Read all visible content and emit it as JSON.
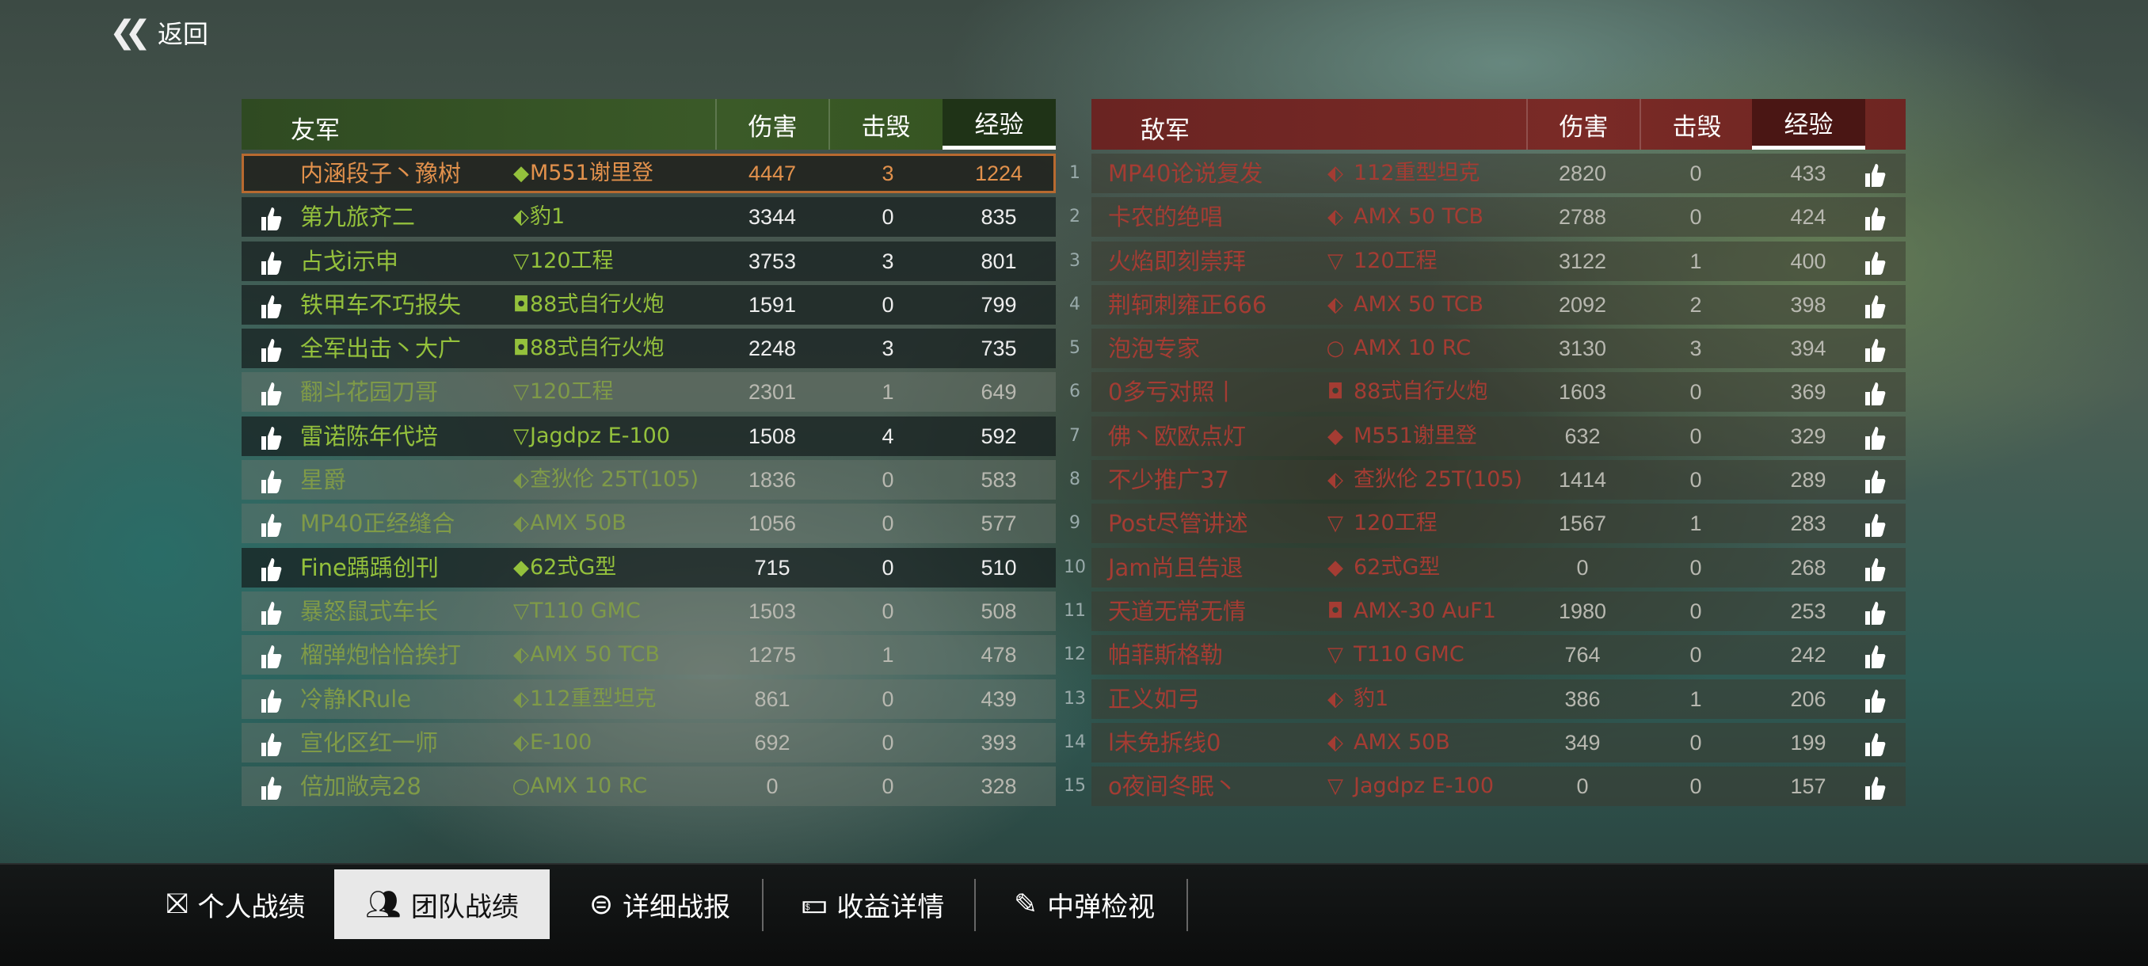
{
  "back": {
    "label": "返回",
    "icon": "double-chevron-left-icon"
  },
  "friendly": {
    "title": "友军",
    "columns": [
      "伤害",
      "击毁",
      "经验"
    ],
    "active_column": "经验",
    "rows": [
      {
        "name": "内涵段子丶豫树",
        "tank_class": "light",
        "tank": "M551谢里登",
        "damage": "4447",
        "kills": "3",
        "exp": "1224",
        "state": "me"
      },
      {
        "name": "第九旅齐二",
        "tank_class": "medium",
        "tank": "豹1",
        "damage": "3344",
        "kills": "0",
        "exp": "835",
        "state": "bright"
      },
      {
        "name": "占戈i示申",
        "tank_class": "td",
        "tank": "120工程",
        "damage": "3753",
        "kills": "3",
        "exp": "801",
        "state": "bright"
      },
      {
        "name": "铁甲车不巧报失",
        "tank_class": "spg",
        "tank": "88式自行火炮",
        "damage": "1591",
        "kills": "0",
        "exp": "799",
        "state": "bright"
      },
      {
        "name": "全军出击丶大广",
        "tank_class": "spg",
        "tank": "88式自行火炮",
        "damage": "2248",
        "kills": "3",
        "exp": "735",
        "state": "bright"
      },
      {
        "name": "翻斗花园刀哥",
        "tank_class": "td",
        "tank": "120工程",
        "damage": "2301",
        "kills": "1",
        "exp": "649",
        "state": "dim"
      },
      {
        "name": "雷诺陈年代培",
        "tank_class": "td",
        "tank": "Jagdpz E-100",
        "damage": "1508",
        "kills": "4",
        "exp": "592",
        "state": "bright"
      },
      {
        "name": "星爵",
        "tank_class": "medium",
        "tank": "查狄伦 25T(105)",
        "damage": "1836",
        "kills": "0",
        "exp": "583",
        "state": "dim"
      },
      {
        "name": "MP40正经缝合",
        "tank_class": "medium",
        "tank": "AMX 50B",
        "damage": "1056",
        "kills": "0",
        "exp": "577",
        "state": "dim"
      },
      {
        "name": "Fine踽踽创刊",
        "tank_class": "light",
        "tank": "62式G型",
        "damage": "715",
        "kills": "0",
        "exp": "510",
        "state": "bright"
      },
      {
        "name": "暴怒鼠式车长",
        "tank_class": "td",
        "tank": "T110 GMC",
        "damage": "1503",
        "kills": "0",
        "exp": "508",
        "state": "dim"
      },
      {
        "name": "榴弹炮恰恰挨打",
        "tank_class": "medium",
        "tank": "AMX 50 TCB",
        "damage": "1275",
        "kills": "1",
        "exp": "478",
        "state": "dim"
      },
      {
        "name": "冷静KRule",
        "tank_class": "medium",
        "tank": "112重型坦克",
        "damage": "861",
        "kills": "0",
        "exp": "439",
        "state": "dim"
      },
      {
        "name": "宣化区红一师",
        "tank_class": "medium",
        "tank": "E-100",
        "damage": "692",
        "kills": "0",
        "exp": "393",
        "state": "dim"
      },
      {
        "name": "倍加敞亮28",
        "tank_class": "wheeled",
        "tank": "AMX 10 RC",
        "damage": "0",
        "kills": "0",
        "exp": "328",
        "state": "dim"
      }
    ]
  },
  "enemy": {
    "title": "敌军",
    "columns": [
      "伤害",
      "击毁",
      "经验"
    ],
    "active_column": "经验",
    "rows": [
      {
        "rank": "1",
        "name": "MP40论说复发",
        "tank_class": "medium",
        "tank": "112重型坦克",
        "damage": "2820",
        "kills": "0",
        "exp": "433"
      },
      {
        "rank": "2",
        "name": "卡农的绝唱",
        "tank_class": "medium",
        "tank": "AMX 50 TCB",
        "damage": "2788",
        "kills": "0",
        "exp": "424"
      },
      {
        "rank": "3",
        "name": "火焰即刻崇拜",
        "tank_class": "td",
        "tank": "120工程",
        "damage": "3122",
        "kills": "1",
        "exp": "400"
      },
      {
        "rank": "4",
        "name": "荆轲刺雍正666",
        "tank_class": "medium",
        "tank": "AMX 50 TCB",
        "damage": "2092",
        "kills": "2",
        "exp": "398"
      },
      {
        "rank": "5",
        "name": "泡泡专家",
        "tank_class": "wheeled",
        "tank": "AMX 10 RC",
        "damage": "3130",
        "kills": "3",
        "exp": "394"
      },
      {
        "rank": "6",
        "name": "0多亏对照丨",
        "tank_class": "spg",
        "tank": "88式自行火炮",
        "damage": "1603",
        "kills": "0",
        "exp": "369"
      },
      {
        "rank": "7",
        "name": "佛丶欧欧点灯",
        "tank_class": "light",
        "tank": "M551谢里登",
        "damage": "632",
        "kills": "0",
        "exp": "329"
      },
      {
        "rank": "8",
        "name": "不少推广37",
        "tank_class": "medium",
        "tank": "查狄伦 25T(105)",
        "damage": "1414",
        "kills": "0",
        "exp": "289"
      },
      {
        "rank": "9",
        "name": "Post尽管讲述",
        "tank_class": "td",
        "tank": "120工程",
        "damage": "1567",
        "kills": "1",
        "exp": "283"
      },
      {
        "rank": "10",
        "name": "Jam尚且告退",
        "tank_class": "light",
        "tank": "62式G型",
        "damage": "0",
        "kills": "0",
        "exp": "268"
      },
      {
        "rank": "11",
        "name": "天道无常无情",
        "tank_class": "spg",
        "tank": "AMX-30 AuF1",
        "damage": "1980",
        "kills": "0",
        "exp": "253"
      },
      {
        "rank": "12",
        "name": "帕菲斯格勒",
        "tank_class": "td",
        "tank": "T110 GMC",
        "damage": "764",
        "kills": "0",
        "exp": "242"
      },
      {
        "rank": "13",
        "name": "正义如弓",
        "tank_class": "medium",
        "tank": "豹1",
        "damage": "386",
        "kills": "1",
        "exp": "206"
      },
      {
        "rank": "14",
        "name": "l未免拆线0",
        "tank_class": "medium",
        "tank": "AMX 50B",
        "damage": "349",
        "kills": "0",
        "exp": "199"
      },
      {
        "rank": "15",
        "name": "o夜间冬眠丶",
        "tank_class": "td",
        "tank": "Jagdpz E-100",
        "damage": "0",
        "kills": "0",
        "exp": "157"
      }
    ]
  },
  "tabs": [
    {
      "label": "个人战绩",
      "icon": "star-badge-icon",
      "active": false
    },
    {
      "label": "团队战绩",
      "icon": "team-icon",
      "active": true
    },
    {
      "label": "详细战报",
      "icon": "list-circle-icon",
      "active": false
    },
    {
      "label": "收益详情",
      "icon": "money-icon",
      "active": false
    },
    {
      "label": "中弹检视",
      "icon": "shell-hit-icon",
      "active": false
    }
  ],
  "colors": {
    "friendly_header": "#3b5a28",
    "enemy_header": "#7a2a26",
    "friendly_name": "#94c13c",
    "enemy_name": "#a43c33",
    "player_highlight": "#e2914c"
  }
}
